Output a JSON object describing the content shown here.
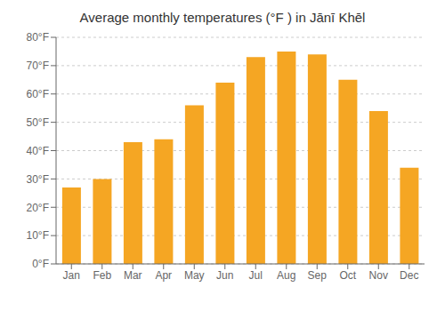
{
  "chart_data": {
    "type": "bar",
    "title": "Average monthly temperatures (°F ) in Jānī Khēl",
    "categories": [
      "Jan",
      "Feb",
      "Mar",
      "Apr",
      "May",
      "Jun",
      "Jul",
      "Aug",
      "Sep",
      "Oct",
      "Nov",
      "Dec"
    ],
    "values": [
      27,
      30,
      43,
      44,
      56,
      64,
      73,
      75,
      74,
      65,
      54,
      34
    ],
    "color": "#F5A623",
    "ylim": [
      0,
      80
    ],
    "yticks": [
      {
        "value": 0,
        "label": "0°F"
      },
      {
        "value": 10,
        "label": "10°F"
      },
      {
        "value": 20,
        "label": "20°F"
      },
      {
        "value": 30,
        "label": "30°F"
      },
      {
        "value": 40,
        "label": "40°F"
      },
      {
        "value": 50,
        "label": "50°F"
      },
      {
        "value": 60,
        "label": "60°F"
      },
      {
        "value": 70,
        "label": "70°F"
      },
      {
        "value": 80,
        "label": "80°F"
      }
    ],
    "grid": true
  }
}
